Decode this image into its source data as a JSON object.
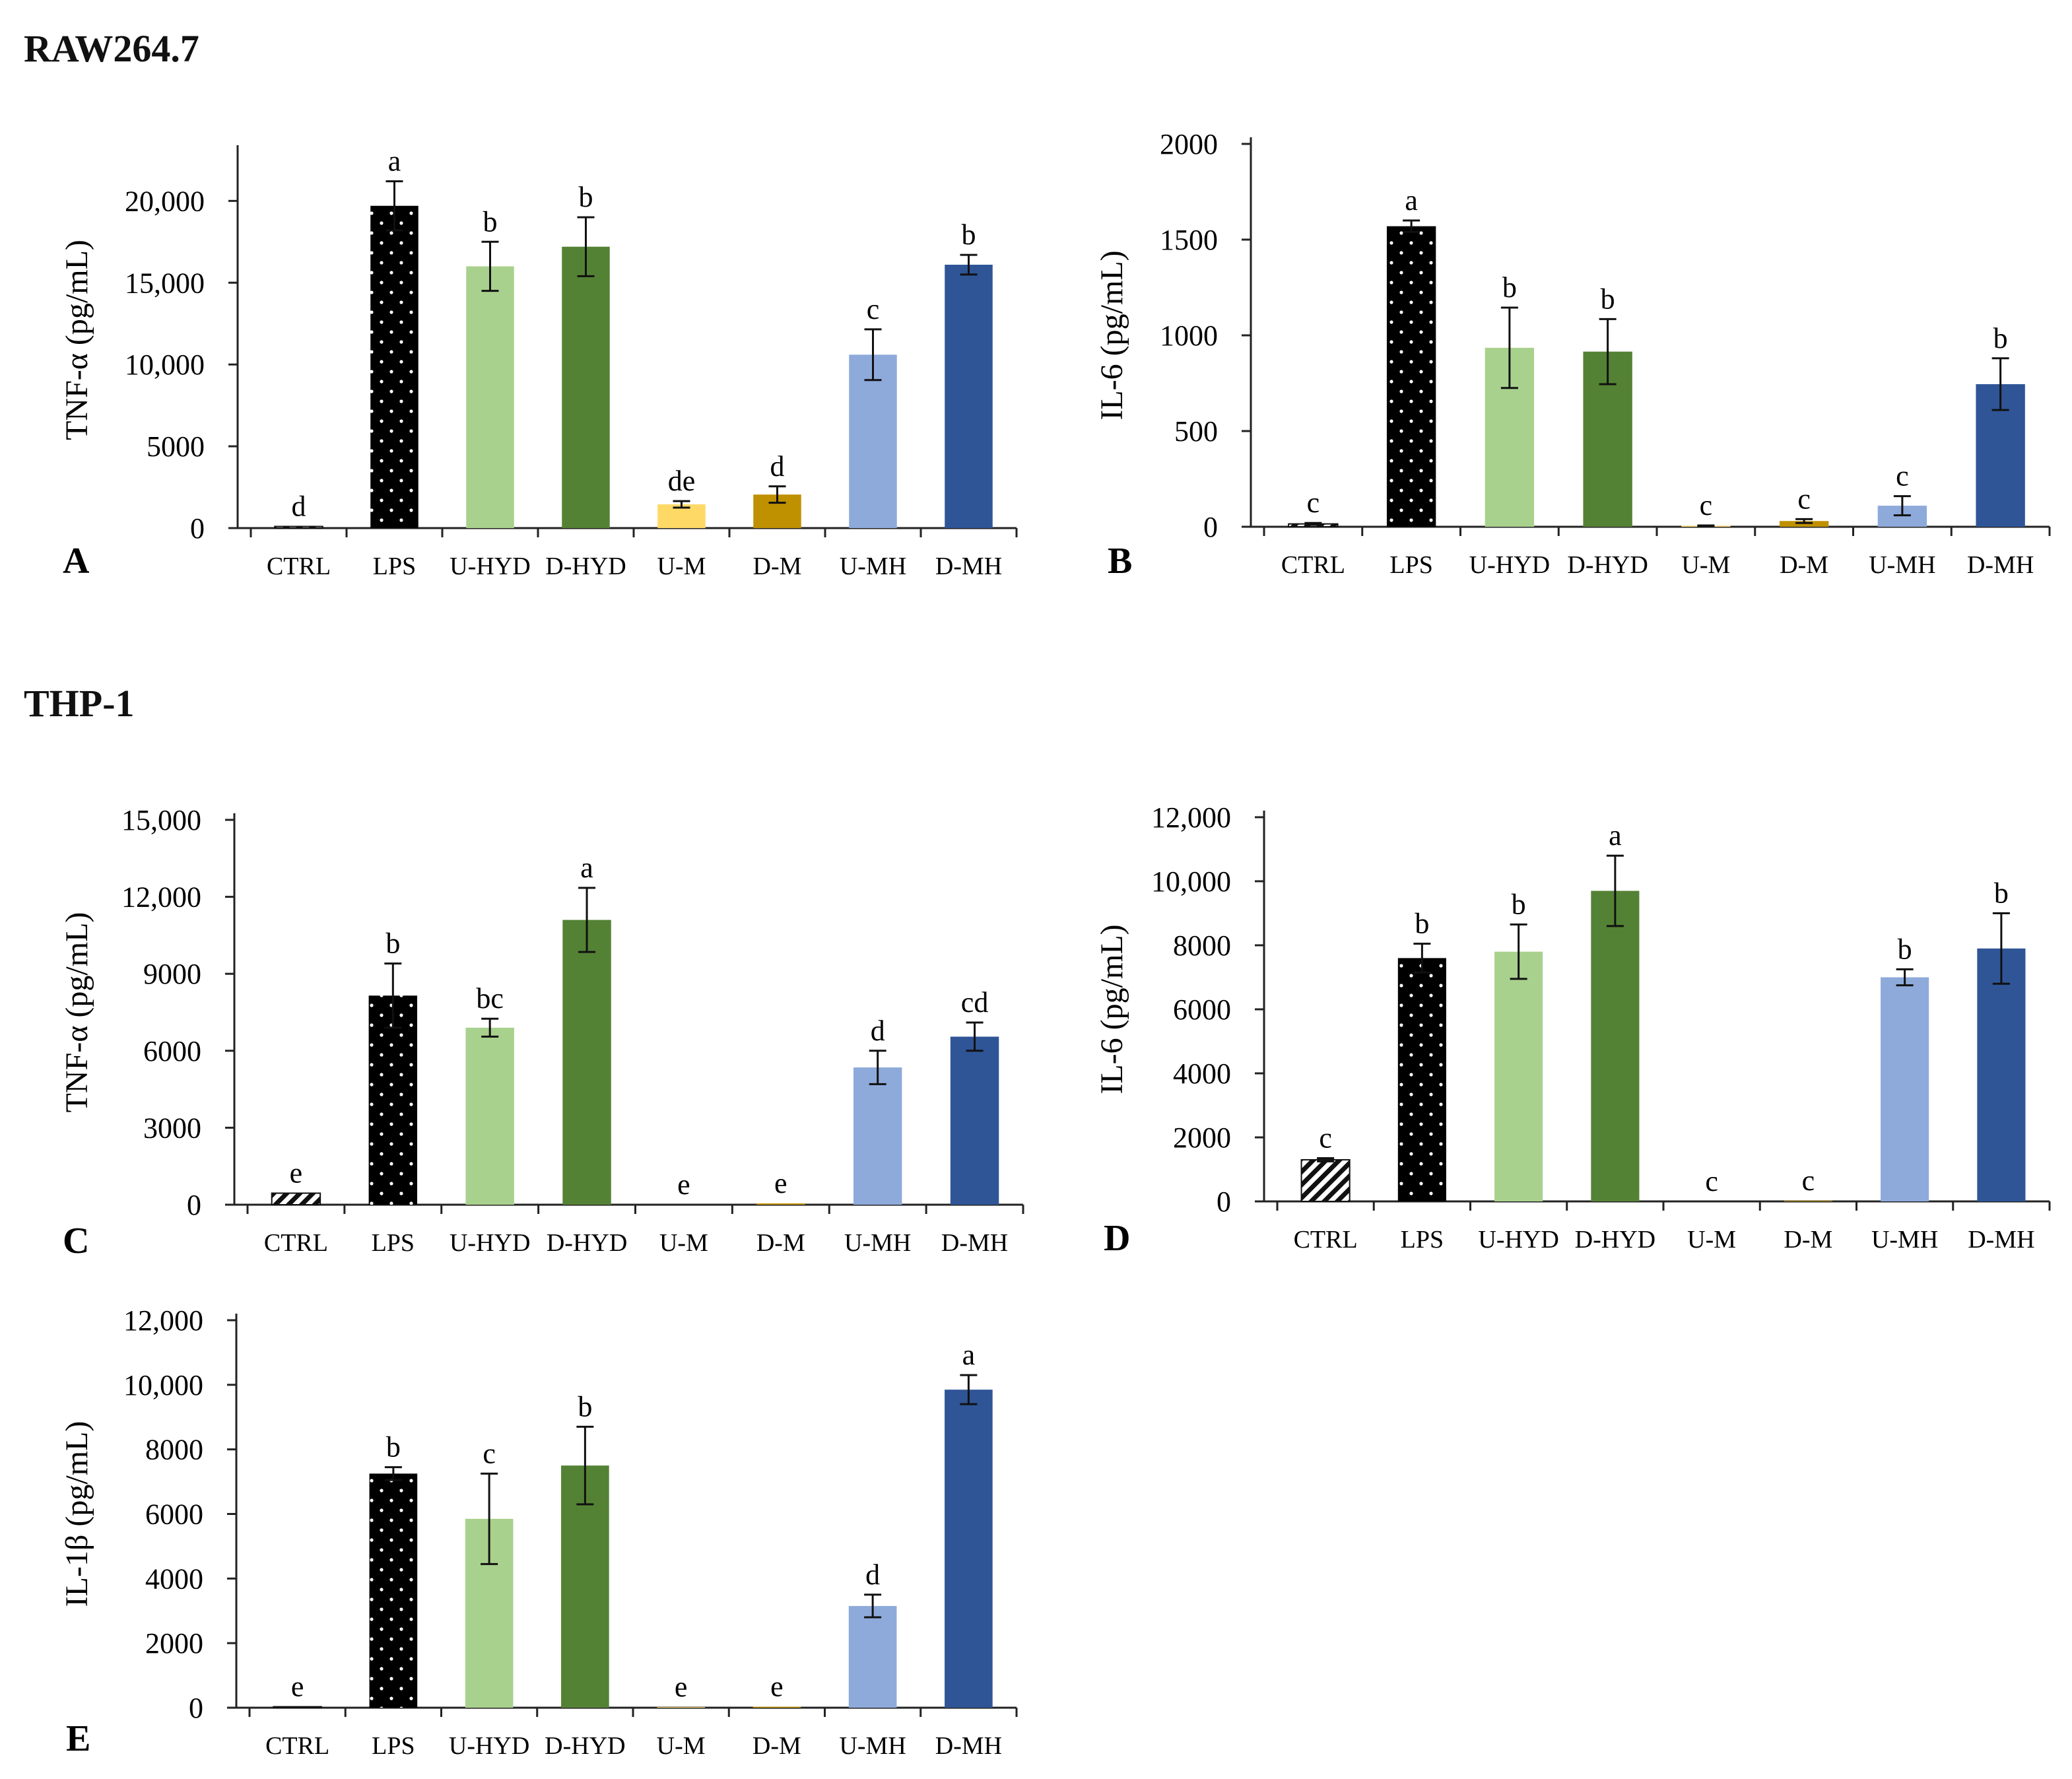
{
  "sections": {
    "raw": "RAW264.7",
    "thp": "THP-1"
  },
  "colors": {
    "CTRL": "#111111",
    "LPS": "#000000",
    "U-HYD": "#a9d18e",
    "D-HYD": "#548235",
    "U-M": "#ffd966",
    "D-M": "#bf9000",
    "U-MH": "#8eaadb",
    "D-MH": "#2f5597"
  },
  "chart_data": [
    {
      "type": "bar",
      "panel": "A",
      "cell": "RAW264.7",
      "ylabel": "TNF-α (pg/mL)",
      "categories": [
        "CTRL",
        "LPS",
        "U-HYD",
        "D-HYD",
        "U-M",
        "D-M",
        "U-MH",
        "D-MH"
      ],
      "values": [
        100,
        19700,
        16000,
        17200,
        1450,
        2050,
        10600,
        16100
      ],
      "errors": [
        0,
        1500,
        1500,
        1800,
        200,
        500,
        1550,
        600
      ],
      "significance": [
        "d",
        "a",
        "b",
        "b",
        "de",
        "d",
        "c",
        "b"
      ],
      "ylim": [
        0,
        23000
      ],
      "ticks": [
        0,
        5000,
        10000,
        15000,
        20000
      ],
      "tick_labels": [
        "0",
        "5000",
        "10,000",
        "15,000",
        "20,000"
      ]
    },
    {
      "type": "bar",
      "panel": "B",
      "cell": "RAW264.7",
      "ylabel": "IL-6 (pg/mL)",
      "categories": [
        "CTRL",
        "LPS",
        "U-HYD",
        "D-HYD",
        "U-M",
        "D-M",
        "U-MH",
        "D-MH"
      ],
      "values": [
        15,
        1570,
        935,
        915,
        5,
        30,
        110,
        745
      ],
      "errors": [
        5,
        30,
        210,
        170,
        2,
        10,
        50,
        135
      ],
      "significance": [
        "c",
        "a",
        "b",
        "b",
        "c",
        "c",
        "c",
        "b"
      ],
      "ylim": [
        0,
        2000
      ],
      "ticks": [
        0,
        500,
        1000,
        1500,
        2000
      ],
      "tick_labels": [
        "0",
        "500",
        "1000",
        "1500",
        "2000"
      ]
    },
    {
      "type": "bar",
      "panel": "C",
      "cell": "THP-1",
      "ylabel": "TNF-α (pg/mL)",
      "categories": [
        "CTRL",
        "LPS",
        "U-HYD",
        "D-HYD",
        "U-M",
        "D-M",
        "U-MH",
        "D-MH"
      ],
      "values": [
        450,
        8150,
        6900,
        11100,
        0,
        50,
        5350,
        6550
      ],
      "errors": [
        0,
        1250,
        350,
        1250,
        0,
        0,
        650,
        550
      ],
      "significance": [
        "e",
        "b",
        "bc",
        "a",
        "e",
        "e",
        "d",
        "cd"
      ],
      "ylim": [
        0,
        15000
      ],
      "ticks": [
        0,
        3000,
        6000,
        9000,
        12000,
        15000
      ],
      "tick_labels": [
        "0",
        "3000",
        "6000",
        "9000",
        "12,000",
        "15,000"
      ]
    },
    {
      "type": "bar",
      "panel": "D",
      "cell": "THP-1",
      "ylabel": "IL-6 (pg/mL)",
      "categories": [
        "CTRL",
        "LPS",
        "U-HYD",
        "D-HYD",
        "U-M",
        "D-M",
        "U-MH",
        "D-MH"
      ],
      "values": [
        1300,
        7600,
        7800,
        9700,
        0,
        20,
        7000,
        7900
      ],
      "errors": [
        50,
        450,
        850,
        1100,
        0,
        0,
        250,
        1100
      ],
      "significance": [
        "c",
        "b",
        "b",
        "a",
        "c",
        "c",
        "b",
        "b"
      ],
      "ylim": [
        0,
        12000
      ],
      "ticks": [
        0,
        2000,
        4000,
        6000,
        8000,
        10000,
        12000
      ],
      "tick_labels": [
        "0",
        "2000",
        "4000",
        "6000",
        "8000",
        "10,000",
        "12,000"
      ]
    },
    {
      "type": "bar",
      "panel": "E",
      "cell": "THP-1",
      "ylabel": "IL-1β (pg/mL)",
      "categories": [
        "CTRL",
        "LPS",
        "U-HYD",
        "D-HYD",
        "U-M",
        "D-M",
        "U-MH",
        "D-MH"
      ],
      "values": [
        30,
        7250,
        5850,
        7500,
        20,
        30,
        3150,
        9850
      ],
      "errors": [
        0,
        200,
        1400,
        1200,
        0,
        0,
        350,
        450
      ],
      "significance": [
        "e",
        "b",
        "c",
        "b",
        "e",
        "e",
        "d",
        "a"
      ],
      "ylim": [
        0,
        12000
      ],
      "ticks": [
        0,
        2000,
        4000,
        6000,
        8000,
        10000,
        12000
      ],
      "tick_labels": [
        "0",
        "2000",
        "4000",
        "6000",
        "8000",
        "10,000",
        "12,000"
      ]
    }
  ]
}
